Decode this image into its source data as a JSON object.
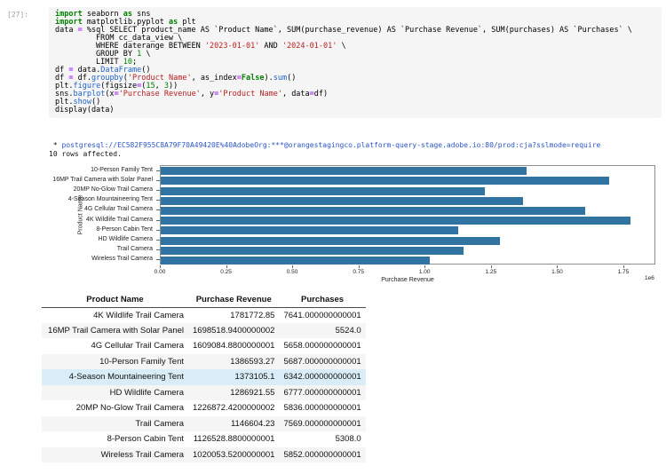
{
  "cell": {
    "prompt": "[27]:",
    "code_lines": [
      [
        [
          "k",
          "import"
        ],
        [
          "p",
          " seaborn "
        ],
        [
          "k",
          "as"
        ],
        [
          "p",
          " sns"
        ]
      ],
      [
        [
          "k",
          "import"
        ],
        [
          "p",
          " matplotlib.pyplot "
        ],
        [
          "k",
          "as"
        ],
        [
          "p",
          " plt"
        ]
      ],
      [
        [
          "p",
          "data "
        ],
        [
          "o",
          "="
        ],
        [
          "p",
          " %sql SELECT product_name AS `Product Name`, SUM(purchase_revenue) AS `Purchase Revenue`, SUM(purchases) AS `Purchases` \\"
        ]
      ],
      [
        [
          "p",
          "         FROM cc_data_view \\"
        ]
      ],
      [
        [
          "p",
          "         WHERE daterange BETWEEN "
        ],
        [
          "s",
          "'2023-01-01'"
        ],
        [
          "p",
          " AND "
        ],
        [
          "s",
          "'2024-01-01'"
        ],
        [
          "p",
          " \\"
        ]
      ],
      [
        [
          "p",
          "         GROUP BY "
        ],
        [
          "n",
          "1"
        ],
        [
          "p",
          " \\"
        ]
      ],
      [
        [
          "p",
          "         LIMIT "
        ],
        [
          "n",
          "10"
        ],
        [
          "p",
          ";"
        ]
      ],
      [
        [
          "p",
          "df "
        ],
        [
          "o",
          "="
        ],
        [
          "p",
          " data."
        ],
        [
          "f",
          "DataFrame"
        ],
        [
          "p",
          "()"
        ]
      ],
      [
        [
          "p",
          "df "
        ],
        [
          "o",
          "="
        ],
        [
          "p",
          " df."
        ],
        [
          "f",
          "groupby"
        ],
        [
          "p",
          "("
        ],
        [
          "s",
          "'Product Name'"
        ],
        [
          "p",
          ", as_index"
        ],
        [
          "o",
          "="
        ],
        [
          "k",
          "False"
        ],
        [
          "p",
          ")."
        ],
        [
          "f",
          "sum"
        ],
        [
          "p",
          "()"
        ]
      ],
      [
        [
          "p",
          "plt."
        ],
        [
          "f",
          "figure"
        ],
        [
          "p",
          "(figsize"
        ],
        [
          "o",
          "="
        ],
        [
          "p",
          "("
        ],
        [
          "n",
          "15"
        ],
        [
          "p",
          ", "
        ],
        [
          "n",
          "3"
        ],
        [
          "p",
          "))"
        ]
      ],
      [
        [
          "p",
          "sns."
        ],
        [
          "f",
          "barplot"
        ],
        [
          "p",
          "(x"
        ],
        [
          "o",
          "="
        ],
        [
          "s",
          "'Purchase Revenue'"
        ],
        [
          "p",
          ", y"
        ],
        [
          "o",
          "="
        ],
        [
          "s",
          "'Product Name'"
        ],
        [
          "p",
          ", data"
        ],
        [
          "o",
          "="
        ],
        [
          "p",
          "df)"
        ]
      ],
      [
        [
          "p",
          "plt."
        ],
        [
          "f",
          "show"
        ],
        [
          "p",
          "()"
        ]
      ],
      [
        [
          "p",
          "display(data)"
        ]
      ]
    ]
  },
  "output": {
    "connection_prefix": " * ",
    "connection_line": "postgresql://EC582F955C8A79F70A49420E%40AdobeOrg:***@orangestagingco.platform-query-stage.adobe.io:80/prod:cja?sslmode=require",
    "rows_affected": "10 rows affected."
  },
  "chart_data": {
    "type": "bar",
    "orientation": "horizontal",
    "title": "",
    "xlabel": "Purchase Revenue",
    "ylabel": "Product Name",
    "offset_label": "1e6",
    "categories": [
      "10-Person Family Tent",
      "16MP Trail Camera with Solar Panel",
      "20MP No-Glow Trail Camera",
      "4-Season Mountaineering Tent",
      "4G Cellular Trail Camera",
      "4K Wildlife Trail Camera",
      "8-Person Cabin Tent",
      "HD Wildlife Camera",
      "Trail Camera",
      "Wireless Trail Camera"
    ],
    "values": [
      1386593.27,
      1698518.94,
      1226872.42,
      1373105.1,
      1609084.88,
      1781772.85,
      1126528.88,
      1286921.55,
      1146604.23,
      1020053.52
    ],
    "xlim": [
      0,
      1871000
    ],
    "xticks": [
      0,
      250000,
      500000,
      750000,
      1000000,
      1250000,
      1500000,
      1750000
    ],
    "xtick_labels": [
      "0.00",
      "0.25",
      "0.50",
      "0.75",
      "1.00",
      "1.25",
      "1.50",
      "1.75"
    ],
    "bar_color": "#3274a1",
    "legend": false,
    "grid": false
  },
  "table": {
    "columns": [
      "Product Name",
      "Purchase Revenue",
      "Purchases"
    ],
    "rows": [
      [
        "4K Wildlife Trail Camera",
        "1781772.85",
        "7641.000000000001"
      ],
      [
        "16MP Trail Camera with Solar Panel",
        "1698518.9400000002",
        "5524.0"
      ],
      [
        "4G Cellular Trail Camera",
        "1609084.8800000001",
        "5658.000000000001"
      ],
      [
        "10-Person Family Tent",
        "1386593.27",
        "5687.000000000001"
      ],
      [
        "4-Season Mountaineering Tent",
        "1373105.1",
        "6342.000000000001"
      ],
      [
        "HD Wildlife Camera",
        "1286921.55",
        "6777.000000000001"
      ],
      [
        "20MP No-Glow Trail Camera",
        "1226872.4200000002",
        "5836.000000000001"
      ],
      [
        "Trail Camera",
        "1146604.23",
        "7569.000000000001"
      ],
      [
        "8-Person Cabin Tent",
        "1126528.8800000001",
        "5308.0"
      ],
      [
        "Wireless Trail Camera",
        "1020053.5200000001",
        "5852.000000000001"
      ]
    ],
    "highlighted_row_index": 4,
    "stripe_color": "#f5f5f5",
    "highlight_color": "#d9edf8"
  }
}
